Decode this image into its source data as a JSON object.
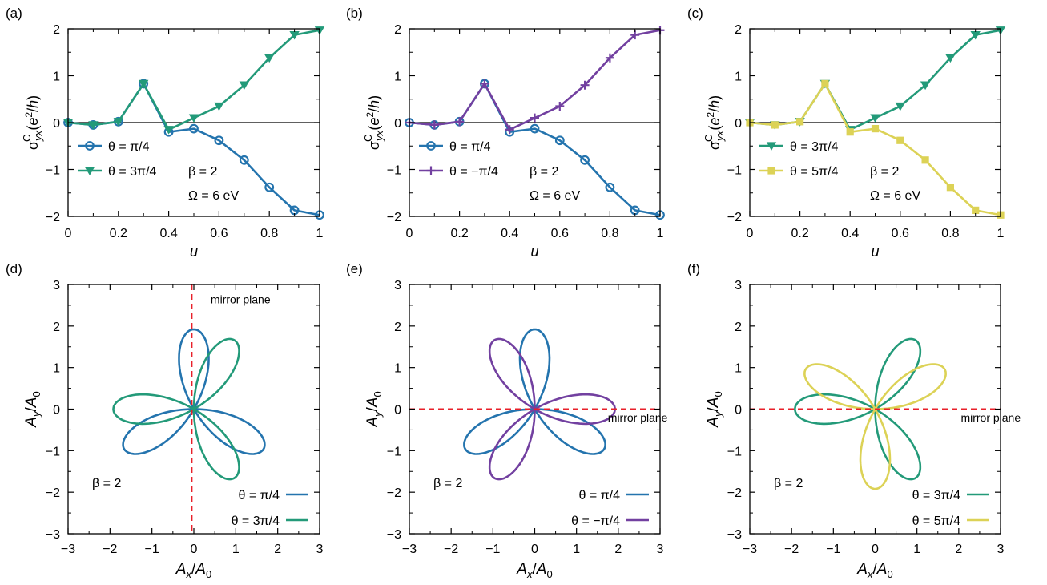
{
  "colors": {
    "blue": "#2474ae",
    "green": "#239a79",
    "purple": "#7240a0",
    "yellow": "#dcd256",
    "red": "#e8202a",
    "axis": "#000000"
  },
  "chart_data": [
    {
      "panel": "(a)",
      "type": "line",
      "xlabel": "u",
      "ylabel": "σ_yx^C (e²/h)",
      "xlim": [
        0,
        1
      ],
      "ylim": [
        -2,
        2
      ],
      "xticks": [
        "0",
        "0.2",
        "0.4",
        "0.6",
        "0.8",
        "1"
      ],
      "yticks": [
        "2",
        "1",
        "0",
        "−1",
        "−2"
      ],
      "annotations": [
        "β = 2",
        "Ω = 6 eV"
      ],
      "legend_position": "bottom-left",
      "x": [
        0,
        0.1,
        0.2,
        0.3,
        0.4,
        0.5,
        0.6,
        0.7,
        0.8,
        0.9,
        1.0
      ],
      "series": [
        {
          "name": "θ = π/4",
          "color": "#2474ae",
          "marker": "circle",
          "values": [
            0,
            -0.05,
            0.02,
            0.83,
            -0.2,
            -0.13,
            -0.38,
            -0.8,
            -1.38,
            -1.87,
            -1.97
          ]
        },
        {
          "name": "θ = 3π/4",
          "color": "#239a79",
          "marker": "triangle-down",
          "values": [
            0,
            -0.05,
            0.02,
            0.83,
            -0.15,
            0.1,
            0.35,
            0.8,
            1.38,
            1.87,
            1.97
          ]
        }
      ]
    },
    {
      "panel": "(b)",
      "type": "line",
      "xlabel": "u",
      "ylabel": "σ_yx^C (e²/h)",
      "xlim": [
        0,
        1
      ],
      "ylim": [
        -2,
        2
      ],
      "xticks": [
        "0",
        "0.2",
        "0.4",
        "0.6",
        "0.8",
        "1"
      ],
      "yticks": [
        "2",
        "1",
        "0",
        "−1",
        "−2"
      ],
      "annotations": [
        "β = 2",
        "Ω = 6 eV"
      ],
      "legend_position": "bottom-left",
      "x": [
        0,
        0.1,
        0.2,
        0.3,
        0.4,
        0.5,
        0.6,
        0.7,
        0.8,
        0.9,
        1.0
      ],
      "series": [
        {
          "name": "θ = π/4",
          "color": "#2474ae",
          "marker": "circle",
          "values": [
            0,
            -0.05,
            0.02,
            0.83,
            -0.2,
            -0.13,
            -0.38,
            -0.8,
            -1.38,
            -1.87,
            -1.97
          ]
        },
        {
          "name": "θ = −π/4",
          "color": "#7240a0",
          "marker": "plus",
          "values": [
            0,
            -0.05,
            0.02,
            0.83,
            -0.15,
            0.1,
            0.35,
            0.8,
            1.38,
            1.87,
            1.97
          ]
        }
      ]
    },
    {
      "panel": "(c)",
      "type": "line",
      "xlabel": "u",
      "ylabel": "σ_yx^C (e²/h)",
      "xlim": [
        0,
        1
      ],
      "ylim": [
        -2,
        2
      ],
      "xticks": [
        "0",
        "0.2",
        "0.4",
        "0.6",
        "0.8",
        "1"
      ],
      "yticks": [
        "2",
        "1",
        "0",
        "−1",
        "−2"
      ],
      "annotations": [
        "β = 2",
        "Ω = 6 eV"
      ],
      "legend_position": "bottom-left",
      "x": [
        0,
        0.1,
        0.2,
        0.3,
        0.4,
        0.5,
        0.6,
        0.7,
        0.8,
        0.9,
        1.0
      ],
      "series": [
        {
          "name": "θ = 3π/4",
          "color": "#239a79",
          "marker": "triangle-down",
          "values": [
            0,
            -0.05,
            0.02,
            0.83,
            -0.15,
            0.1,
            0.35,
            0.8,
            1.38,
            1.87,
            1.97
          ]
        },
        {
          "name": "θ = 5π/4",
          "color": "#dcd256",
          "marker": "square",
          "values": [
            0,
            -0.05,
            0.02,
            0.83,
            -0.2,
            -0.13,
            -0.38,
            -0.8,
            -1.38,
            -1.87,
            -1.97
          ]
        }
      ]
    },
    {
      "panel": "(d)",
      "type": "line",
      "xlabel": "A_x/A_0",
      "ylabel": "A_y/A_0",
      "xlim": [
        -3,
        3
      ],
      "ylim": [
        -3,
        3
      ],
      "xticks": [
        "−3",
        "−2",
        "−1",
        "0",
        "1",
        "2",
        "3"
      ],
      "yticks": [
        "3",
        "2",
        "1",
        "0",
        "−1",
        "−2",
        "−3"
      ],
      "annotations": [
        "β = 2"
      ],
      "mirror_plane": {
        "label": "mirror plane",
        "orientation": "vertical"
      },
      "legend_position": "bottom-right",
      "series": [
        {
          "name": "θ = π/4",
          "color": "#2474ae",
          "curve": "rose",
          "theta_deg": 45
        },
        {
          "name": "θ = 3π/4",
          "color": "#239a79",
          "curve": "rose",
          "theta_deg": 135
        }
      ]
    },
    {
      "panel": "(e)",
      "type": "line",
      "xlabel": "A_x/A_0",
      "ylabel": "A_y/A_0",
      "xlim": [
        -3,
        3
      ],
      "ylim": [
        -3,
        3
      ],
      "xticks": [
        "−3",
        "−2",
        "−1",
        "0",
        "1",
        "2",
        "3"
      ],
      "yticks": [
        "3",
        "2",
        "1",
        "0",
        "−1",
        "−2",
        "−3"
      ],
      "annotations": [
        "β = 2"
      ],
      "mirror_plane": {
        "label": "mirror plane",
        "orientation": "horizontal"
      },
      "legend_position": "bottom-right",
      "series": [
        {
          "name": "θ = π/4",
          "color": "#2474ae",
          "curve": "rose",
          "theta_deg": 45
        },
        {
          "name": "θ = −π/4",
          "color": "#7240a0",
          "curve": "rose",
          "theta_deg": -45
        }
      ]
    },
    {
      "panel": "(f)",
      "type": "line",
      "xlabel": "A_x/A_0",
      "ylabel": "A_y/A_0",
      "xlim": [
        -3,
        3
      ],
      "ylim": [
        -3,
        3
      ],
      "xticks": [
        "−3",
        "−2",
        "−1",
        "0",
        "1",
        "2",
        "3"
      ],
      "yticks": [
        "3",
        "2",
        "1",
        "0",
        "−1",
        "−2",
        "−3"
      ],
      "annotations": [
        "β = 2"
      ],
      "mirror_plane": {
        "label": "mirror plane",
        "orientation": "horizontal"
      },
      "legend_position": "bottom-right",
      "series": [
        {
          "name": "θ = 3π/4",
          "color": "#239a79",
          "curve": "rose",
          "theta_deg": 135
        },
        {
          "name": "θ = 5π/4",
          "color": "#dcd256",
          "curve": "rose",
          "theta_deg": 225
        }
      ]
    }
  ]
}
